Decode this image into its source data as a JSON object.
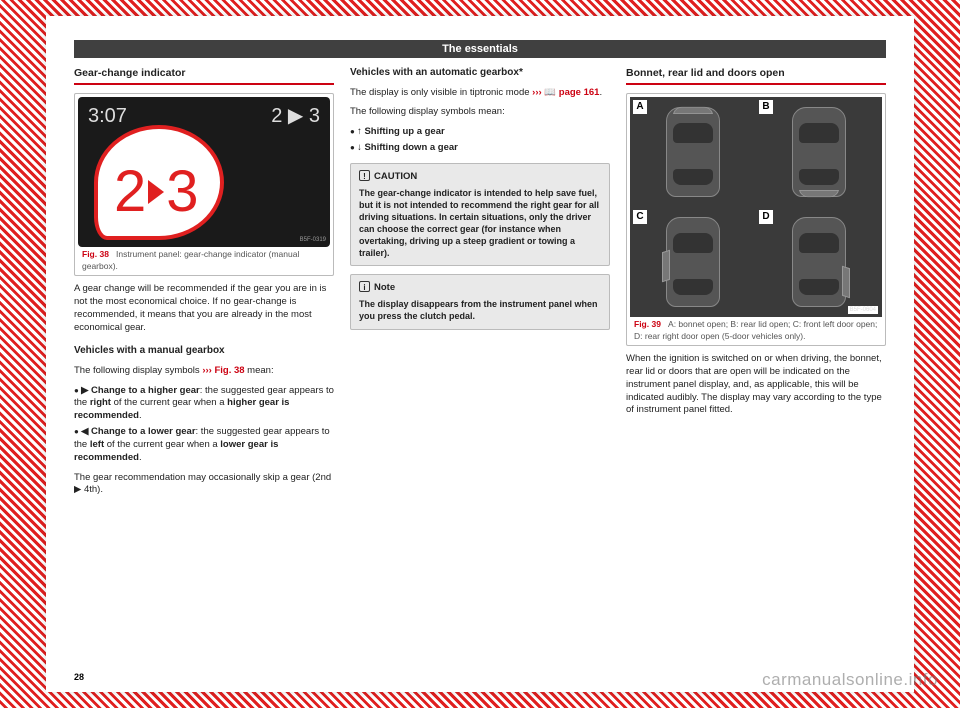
{
  "page_number": "28",
  "header": "The essentials",
  "watermark": "carmanualsonline.info",
  "col1": {
    "heading": "Gear-change indicator",
    "fig38": {
      "clock": "3:07",
      "top_small": "2 ▶ 3",
      "big_from": "2",
      "big_to": "3",
      "tag": "B5F-0319",
      "ref": "Fig. 38",
      "caption": "Instrument panel: gear-change indicator (manual gearbox)."
    },
    "p1": "A gear change will be recommended if the gear you are in is not the most economical choice. If no gear-change is recommended, it means that you are already in the most economical gear.",
    "sub1": "Vehicles with a manual gearbox",
    "p2a": "The following display symbols ",
    "p2b": "››› Fig. 38",
    "p2c": " mean:",
    "b1a": "▶ Change to a higher gear",
    "b1b": ": the suggested gear appears to the ",
    "b1c": "right",
    "b1d": " of the current gear when a ",
    "b1e": "higher gear is recommended",
    "b1f": ".",
    "b2a": "◀ Change to a lower gear",
    "b2b": ": the suggested gear appears to the ",
    "b2c": "left",
    "b2d": " of the current gear when a ",
    "b2e": "lower gear is recommended",
    "b2f": ".",
    "p3": "The gear recommendation may occasionally skip a gear (2nd ▶ 4th)."
  },
  "col2": {
    "sub1": "Vehicles with an automatic gearbox*",
    "p1a": "The display is only visible in tiptronic mode ",
    "p1b": "››› 📖 page 161",
    "p1c": ".",
    "p2": "The following display symbols mean:",
    "b1": "↑ Shifting up a gear",
    "b2": "↓ Shifting down a gear",
    "caution_title": "CAUTION",
    "caution_body": "The gear-change indicator is intended to help save fuel, but it is not intended to recommend the right gear for all driving situations. In certain situations, only the driver can choose the correct gear (for instance when overtaking, driving up a steep gradient or towing a trailer).",
    "note_title": "Note",
    "note_body": "The display disappears from the instrument panel when you press the clutch pedal."
  },
  "col3": {
    "heading": "Bonnet, rear lid and doors open",
    "fig39": {
      "labels": {
        "A": "A",
        "B": "B",
        "C": "C",
        "D": "D"
      },
      "tag": "B5F-0604",
      "ref": "Fig. 39",
      "caption": "A: bonnet open; B: rear lid open; C: front left door open; D: rear right door open (5-door vehicles only)."
    },
    "p1": "When the ignition is switched on or when driving, the bonnet, rear lid or doors that are open will be indicated on the instrument panel display, and, as applicable, this will be indicated audibly. The display may vary according to the type of instrument panel fitted."
  }
}
